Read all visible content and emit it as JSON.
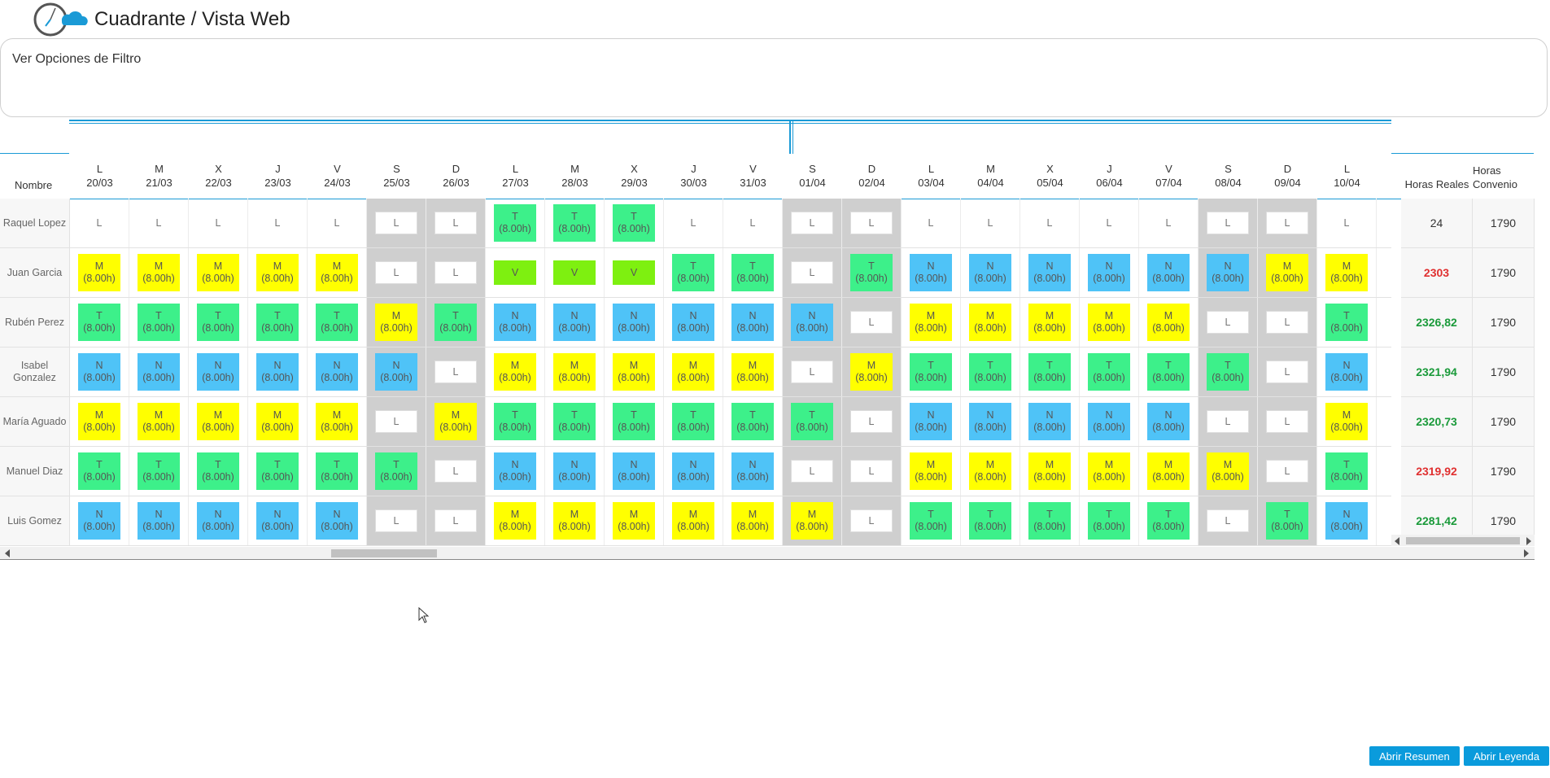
{
  "header": {
    "title": "Cuadrante / Vista Web",
    "logo": "clock-cloud-logo"
  },
  "filter": {
    "label": "Ver Opciones de Filtro"
  },
  "table": {
    "name_header": "Nombre",
    "days": [
      {
        "w": "L",
        "d": "20/03"
      },
      {
        "w": "M",
        "d": "21/03"
      },
      {
        "w": "X",
        "d": "22/03"
      },
      {
        "w": "J",
        "d": "23/03"
      },
      {
        "w": "V",
        "d": "24/03"
      },
      {
        "w": "S",
        "d": "25/03"
      },
      {
        "w": "D",
        "d": "26/03"
      },
      {
        "w": "L",
        "d": "27/03"
      },
      {
        "w": "M",
        "d": "28/03"
      },
      {
        "w": "X",
        "d": "29/03"
      },
      {
        "w": "J",
        "d": "30/03"
      },
      {
        "w": "V",
        "d": "31/03"
      },
      {
        "w": "S",
        "d": "01/04"
      },
      {
        "w": "D",
        "d": "02/04"
      },
      {
        "w": "L",
        "d": "03/04"
      },
      {
        "w": "M",
        "d": "04/04"
      },
      {
        "w": "X",
        "d": "05/04"
      },
      {
        "w": "J",
        "d": "06/04"
      },
      {
        "w": "V",
        "d": "07/04"
      },
      {
        "w": "S",
        "d": "08/04"
      },
      {
        "w": "D",
        "d": "09/04"
      },
      {
        "w": "L",
        "d": "10/04"
      }
    ],
    "weekend_cols": [
      5,
      6,
      12,
      13,
      19,
      20
    ],
    "totals_headers": {
      "real": "Horas Reales",
      "convenio": "Horas Convenio"
    },
    "hours_label": "(8.00h)",
    "shift_colors": {
      "M": "#ffff00",
      "T": "#3df08a",
      "N": "#4fc3f7",
      "V": "#7ef010",
      "L": "#ffffff"
    },
    "rows": [
      {
        "name": "Raquel Lopez",
        "lead": "L",
        "shifts": [
          "L",
          "L",
          "L",
          "L",
          "L",
          "L",
          "L",
          "T",
          "T",
          "T",
          "L",
          "L",
          "L",
          "L",
          "L",
          "L",
          "L",
          "L",
          "L",
          "L",
          "L",
          "L"
        ],
        "real": "24",
        "real_color": "#333333",
        "convenio": "1790"
      },
      {
        "name": "Juan Garcia",
        "lead": "L",
        "shifts": [
          "M",
          "M",
          "M",
          "M",
          "M",
          "L",
          "L",
          "V",
          "V",
          "V",
          "T",
          "T",
          "L",
          "T",
          "N",
          "N",
          "N",
          "N",
          "N",
          "N",
          "M",
          "M"
        ],
        "real": "2303",
        "real_color": "#e03030",
        "convenio": "1790"
      },
      {
        "name": "Rubén Perez",
        "lead": "L",
        "shifts": [
          "T",
          "T",
          "T",
          "T",
          "T",
          "M",
          "T",
          "N",
          "N",
          "N",
          "N",
          "N",
          "N",
          "L",
          "M",
          "M",
          "M",
          "M",
          "M",
          "L",
          "L",
          "T"
        ],
        "real": "2326,82",
        "real_color": "#1a9a3a",
        "convenio": "1790"
      },
      {
        "name": "Isabel Gonzalez",
        "lead": "T",
        "shifts": [
          "N",
          "N",
          "N",
          "N",
          "N",
          "N",
          "L",
          "M",
          "M",
          "M",
          "M",
          "M",
          "L",
          "M",
          "T",
          "T",
          "T",
          "T",
          "T",
          "T",
          "L",
          "N"
        ],
        "real": "2321,94",
        "real_color": "#1a9a3a",
        "convenio": "1790"
      },
      {
        "name": "María Aguado",
        "lead": "L",
        "shifts": [
          "M",
          "M",
          "M",
          "M",
          "M",
          "L",
          "M",
          "T",
          "T",
          "T",
          "T",
          "T",
          "T",
          "L",
          "N",
          "N",
          "N",
          "N",
          "N",
          "L",
          "L",
          "M"
        ],
        "real": "2320,73",
        "real_color": "#1a9a3a",
        "convenio": "1790"
      },
      {
        "name": "Manuel Diaz",
        "lead": "M",
        "shifts": [
          "T",
          "T",
          "T",
          "T",
          "T",
          "T",
          "L",
          "N",
          "N",
          "N",
          "N",
          "N",
          "L",
          "L",
          "M",
          "M",
          "M",
          "M",
          "M",
          "M",
          "L",
          "T"
        ],
        "real": "2319,92",
        "real_color": "#e03030",
        "convenio": "1790"
      },
      {
        "name": "Luis Gomez",
        "lead": "L",
        "shifts": [
          "N",
          "N",
          "N",
          "N",
          "N",
          "L",
          "L",
          "M",
          "M",
          "M",
          "M",
          "M",
          "M",
          "L",
          "T",
          "T",
          "T",
          "T",
          "T",
          "L",
          "T",
          "N"
        ],
        "real": "2281,42",
        "real_color": "#1a9a3a",
        "convenio": "1790"
      }
    ]
  },
  "buttons": {
    "resumen": "Abrir Resumen",
    "leyenda": "Abrir Leyenda"
  },
  "accent_color": "#1a9ad6"
}
